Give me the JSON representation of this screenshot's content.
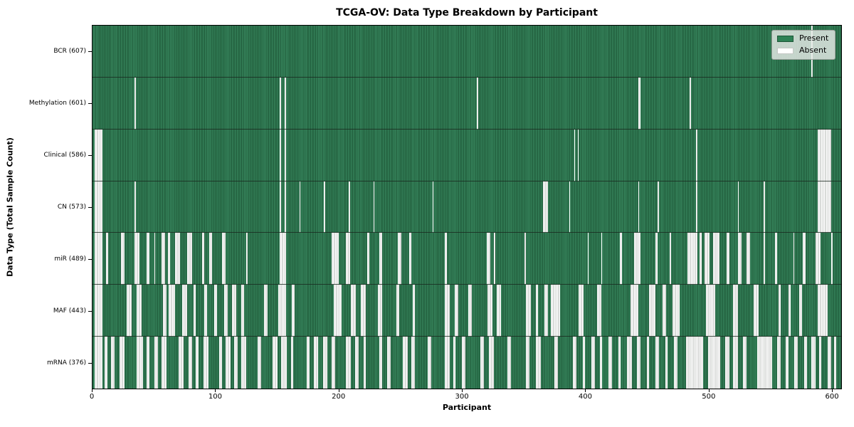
{
  "colors": {
    "present": "#35825a",
    "present_edge": "#1d5737",
    "absent": "#ffffff",
    "absent_edge": "#b0b5b0",
    "legend_bg": "#e8ece8",
    "axis": "#000000"
  },
  "legend": {
    "present_label": "Present",
    "absent_label": "Absent"
  },
  "chart_data": {
    "type": "heatmap",
    "title": "TCGA-OV: Data Type Breakdown by Participant",
    "xlabel": "Participant",
    "ylabel": "Data Type (Total Sample Count)",
    "legend": [
      "Present",
      "Absent"
    ],
    "legend_position": "upper right",
    "grid": false,
    "n_participants": 608,
    "x_range": [
      0,
      608
    ],
    "x_ticks": [
      0,
      100,
      200,
      300,
      400,
      500,
      600
    ],
    "rows": [
      {
        "data_type": "BCR",
        "label": "BCR (607)",
        "present_count": 607,
        "absent_ranges": [
          [
            584,
            1
          ]
        ]
      },
      {
        "data_type": "Methylation",
        "label": "Methylation (601)",
        "present_count": 601,
        "absent_ranges": [
          [
            34,
            1
          ],
          [
            152,
            1
          ],
          [
            156,
            1
          ],
          [
            312,
            1
          ],
          [
            443,
            2
          ],
          [
            485,
            1
          ]
        ]
      },
      {
        "data_type": "Clinical",
        "label": "Clinical (586)",
        "present_count": 586,
        "absent_ranges": [
          [
            2,
            6
          ],
          [
            152,
            1
          ],
          [
            156,
            1
          ],
          [
            391,
            1
          ],
          [
            394,
            1
          ],
          [
            490,
            1
          ],
          [
            589,
            11
          ]
        ]
      },
      {
        "data_type": "CN",
        "label": "CN (573)",
        "present_count": 573,
        "absent_ranges": [
          [
            2,
            6
          ],
          [
            34,
            1
          ],
          [
            152,
            1
          ],
          [
            156,
            1
          ],
          [
            168,
            1
          ],
          [
            188,
            1
          ],
          [
            208,
            1
          ],
          [
            228,
            1
          ],
          [
            276,
            1
          ],
          [
            366,
            4
          ],
          [
            387,
            1
          ],
          [
            443,
            1
          ],
          [
            459,
            1
          ],
          [
            490,
            1
          ],
          [
            524,
            1
          ],
          [
            545,
            1
          ],
          [
            589,
            11
          ]
        ]
      },
      {
        "data_type": "miR",
        "label": "miR (489)",
        "present_count": 489,
        "absent_ranges": [
          [
            2,
            6
          ],
          [
            11,
            2
          ],
          [
            23,
            3
          ],
          [
            34,
            4
          ],
          [
            44,
            2
          ],
          [
            50,
            1
          ],
          [
            56,
            3
          ],
          [
            61,
            2
          ],
          [
            67,
            4
          ],
          [
            77,
            4
          ],
          [
            89,
            2
          ],
          [
            95,
            2
          ],
          [
            105,
            3
          ],
          [
            125,
            1
          ],
          [
            152,
            5
          ],
          [
            194,
            6
          ],
          [
            206,
            3
          ],
          [
            223,
            2
          ],
          [
            233,
            2
          ],
          [
            248,
            3
          ],
          [
            257,
            2
          ],
          [
            286,
            2
          ],
          [
            320,
            3
          ],
          [
            326,
            1
          ],
          [
            351,
            1
          ],
          [
            402,
            1
          ],
          [
            413,
            1
          ],
          [
            428,
            2
          ],
          [
            440,
            5
          ],
          [
            457,
            2
          ],
          [
            469,
            1
          ],
          [
            483,
            8
          ],
          [
            493,
            2
          ],
          [
            497,
            4
          ],
          [
            504,
            5
          ],
          [
            515,
            2
          ],
          [
            524,
            3
          ],
          [
            531,
            3
          ],
          [
            545,
            1
          ],
          [
            554,
            2
          ],
          [
            569,
            1
          ],
          [
            577,
            2
          ],
          [
            587,
            4
          ],
          [
            600,
            1
          ]
        ]
      },
      {
        "data_type": "MAF",
        "label": "MAF (443)",
        "present_count": 443,
        "absent_ranges": [
          [
            2,
            6
          ],
          [
            28,
            4
          ],
          [
            36,
            4
          ],
          [
            57,
            3
          ],
          [
            62,
            5
          ],
          [
            73,
            4
          ],
          [
            82,
            2
          ],
          [
            91,
            2
          ],
          [
            99,
            2
          ],
          [
            107,
            3
          ],
          [
            113,
            4
          ],
          [
            121,
            2
          ],
          [
            139,
            3
          ],
          [
            151,
            6
          ],
          [
            162,
            2
          ],
          [
            196,
            6
          ],
          [
            210,
            4
          ],
          [
            218,
            4
          ],
          [
            232,
            3
          ],
          [
            247,
            2
          ],
          [
            260,
            2
          ],
          [
            286,
            4
          ],
          [
            294,
            3
          ],
          [
            305,
            3
          ],
          [
            321,
            4
          ],
          [
            328,
            4
          ],
          [
            352,
            4
          ],
          [
            360,
            2
          ],
          [
            367,
            3
          ],
          [
            372,
            8
          ],
          [
            395,
            4
          ],
          [
            410,
            3
          ],
          [
            437,
            6
          ],
          [
            452,
            5
          ],
          [
            463,
            3
          ],
          [
            471,
            6
          ],
          [
            498,
            8
          ],
          [
            520,
            4
          ],
          [
            537,
            4
          ],
          [
            557,
            2
          ],
          [
            565,
            2
          ],
          [
            574,
            2
          ],
          [
            589,
            8
          ]
        ]
      },
      {
        "data_type": "mRNA",
        "label": "mRNA (376)",
        "present_count": 376,
        "absent_ranges": [
          [
            2,
            6
          ],
          [
            10,
            2
          ],
          [
            15,
            3
          ],
          [
            22,
            4
          ],
          [
            36,
            5
          ],
          [
            44,
            2
          ],
          [
            50,
            3
          ],
          [
            56,
            4
          ],
          [
            70,
            4
          ],
          [
            78,
            3
          ],
          [
            84,
            2
          ],
          [
            90,
            4
          ],
          [
            103,
            2
          ],
          [
            108,
            4
          ],
          [
            115,
            3
          ],
          [
            121,
            4
          ],
          [
            134,
            3
          ],
          [
            146,
            4
          ],
          [
            153,
            5
          ],
          [
            161,
            2
          ],
          [
            174,
            2
          ],
          [
            180,
            3
          ],
          [
            187,
            4
          ],
          [
            194,
            3
          ],
          [
            206,
            4
          ],
          [
            213,
            3
          ],
          [
            220,
            2
          ],
          [
            233,
            2
          ],
          [
            239,
            3
          ],
          [
            252,
            4
          ],
          [
            259,
            3
          ],
          [
            272,
            3
          ],
          [
            286,
            4
          ],
          [
            293,
            2
          ],
          [
            300,
            3
          ],
          [
            315,
            3
          ],
          [
            322,
            4
          ],
          [
            337,
            3
          ],
          [
            352,
            3
          ],
          [
            360,
            4
          ],
          [
            375,
            3
          ],
          [
            390,
            3
          ],
          [
            398,
            2
          ],
          [
            405,
            3
          ],
          [
            412,
            2
          ],
          [
            419,
            3
          ],
          [
            427,
            2
          ],
          [
            434,
            4
          ],
          [
            442,
            3
          ],
          [
            450,
            2
          ],
          [
            457,
            3
          ],
          [
            465,
            2
          ],
          [
            472,
            3
          ],
          [
            482,
            14
          ],
          [
            500,
            10
          ],
          [
            514,
            3
          ],
          [
            520,
            4
          ],
          [
            528,
            3
          ],
          [
            540,
            12
          ],
          [
            556,
            3
          ],
          [
            563,
            2
          ],
          [
            570,
            3
          ],
          [
            578,
            2
          ],
          [
            584,
            3
          ],
          [
            590,
            2
          ],
          [
            597,
            3
          ],
          [
            602,
            2
          ]
        ]
      }
    ]
  }
}
